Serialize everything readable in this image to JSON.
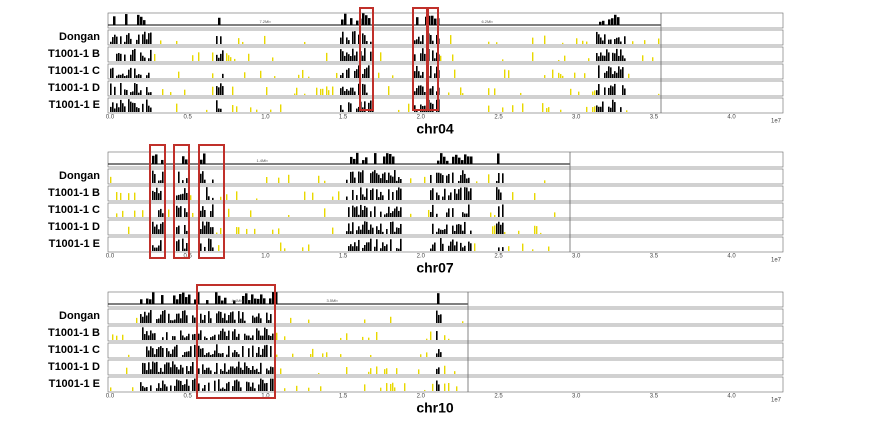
{
  "panels": [
    {
      "chromosome": "chr04",
      "samples": [
        "Dongan",
        "T1001-1 B",
        "T1001-1 C",
        "T1001-1 D",
        "T1001-1 E"
      ],
      "axis_ticks": [
        "0.0",
        "0.5",
        "1.0",
        "1.5",
        "2.0",
        "2.5",
        "3.0",
        "3.5",
        "4.0"
      ],
      "axis_exponent": "1e7",
      "segment_labels": [
        "7.2Mb",
        "6.2Mb"
      ]
    },
    {
      "chromosome": "chr07",
      "samples": [
        "Dongan",
        "T1001-1 B",
        "T1001-1 C",
        "T1001-1 D",
        "T1001-1 E"
      ],
      "axis_ticks": [
        "0.0",
        "0.5",
        "1.0",
        "1.5",
        "2.0",
        "2.5",
        "3.0",
        "3.5",
        "4.0"
      ],
      "axis_exponent": "1e7",
      "segment_labels": [
        "1.4Mb"
      ]
    },
    {
      "chromosome": "chr10",
      "samples": [
        "Dongan",
        "T1001-1 B",
        "T1001-1 C",
        "T1001-1 D",
        "T1001-1 E"
      ],
      "axis_ticks": [
        "0.0",
        "0.5",
        "1.0",
        "1.5",
        "2.0",
        "2.5",
        "3.0",
        "3.5",
        "4.0"
      ],
      "axis_exponent": "1e7",
      "segment_labels": [
        "4.4Mb",
        "3.5Mb"
      ]
    }
  ]
}
